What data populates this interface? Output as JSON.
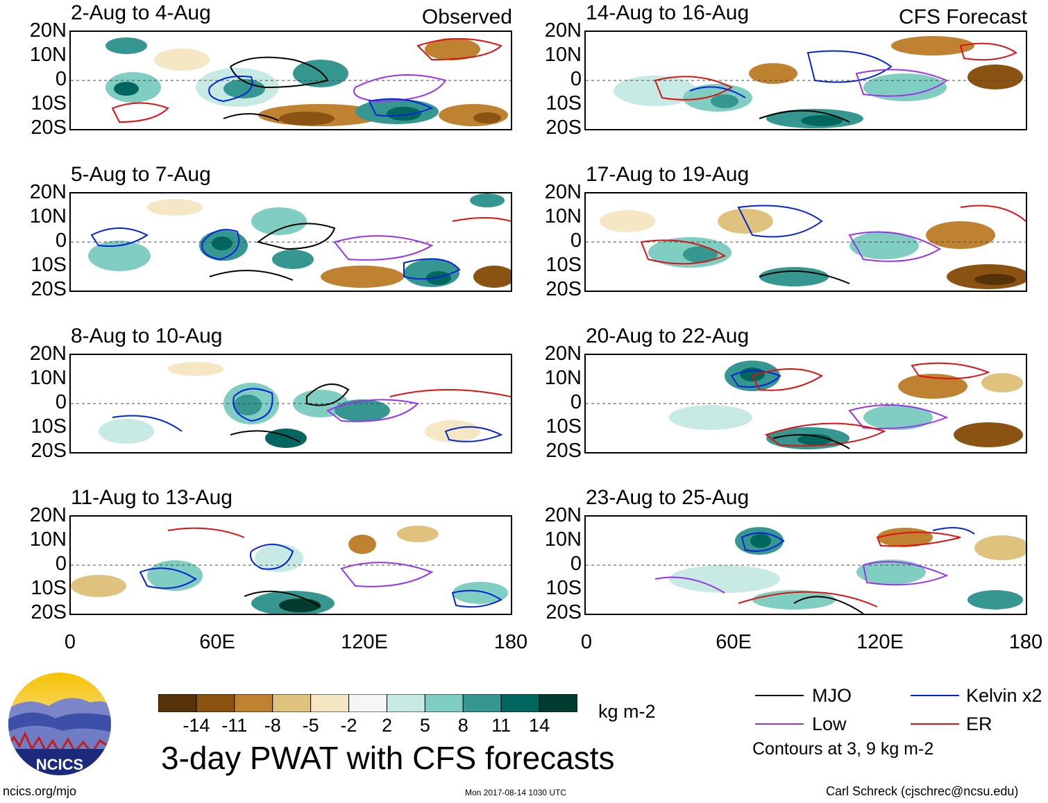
{
  "panels": [
    {
      "title": "2-Aug to 4-Aug",
      "tag": "Observed"
    },
    {
      "title": "14-Aug to 16-Aug",
      "tag": "CFS Forecast"
    },
    {
      "title": "5-Aug to 7-Aug",
      "tag": ""
    },
    {
      "title": "17-Aug to 19-Aug",
      "tag": ""
    },
    {
      "title": "8-Aug to 10-Aug",
      "tag": ""
    },
    {
      "title": "20-Aug to 22-Aug",
      "tag": ""
    },
    {
      "title": "11-Aug to 13-Aug",
      "tag": ""
    },
    {
      "title": "23-Aug to 25-Aug",
      "tag": ""
    }
  ],
  "y_ticks": [
    "20N",
    "10N",
    "0",
    "10S",
    "20S"
  ],
  "x_ticks": [
    "0",
    "60E",
    "120E",
    "180"
  ],
  "colorbar": {
    "colors": [
      "#563208",
      "#8b5312",
      "#bf8231",
      "#dfc27d",
      "#f5e7c3",
      "#f5f5f5",
      "#c7eae5",
      "#80cdc1",
      "#35978f",
      "#01665e",
      "#003c30"
    ],
    "labels": [
      "-14",
      "-11",
      "-8",
      "-5",
      "-2",
      "2",
      "5",
      "8",
      "11",
      "14"
    ],
    "units": "kg m-2"
  },
  "legend": {
    "items": [
      {
        "label": "MJO",
        "color": "#000000"
      },
      {
        "label": "Kelvin x2",
        "color": "#0022dd"
      },
      {
        "label": "Low",
        "color": "#9933ee"
      },
      {
        "label": "ER",
        "color": "#dd1111"
      }
    ],
    "note": "Contours at 3, 9 kg m-2"
  },
  "main_title": "3-day PWAT with CFS forecasts",
  "logo_text": "NCICS",
  "footer": {
    "left": "ncics.org/mjo",
    "center": "Mon 2017-08-14 1030 UTC",
    "right": "Carl Schreck (cjschrec@ncsu.edu)"
  }
}
